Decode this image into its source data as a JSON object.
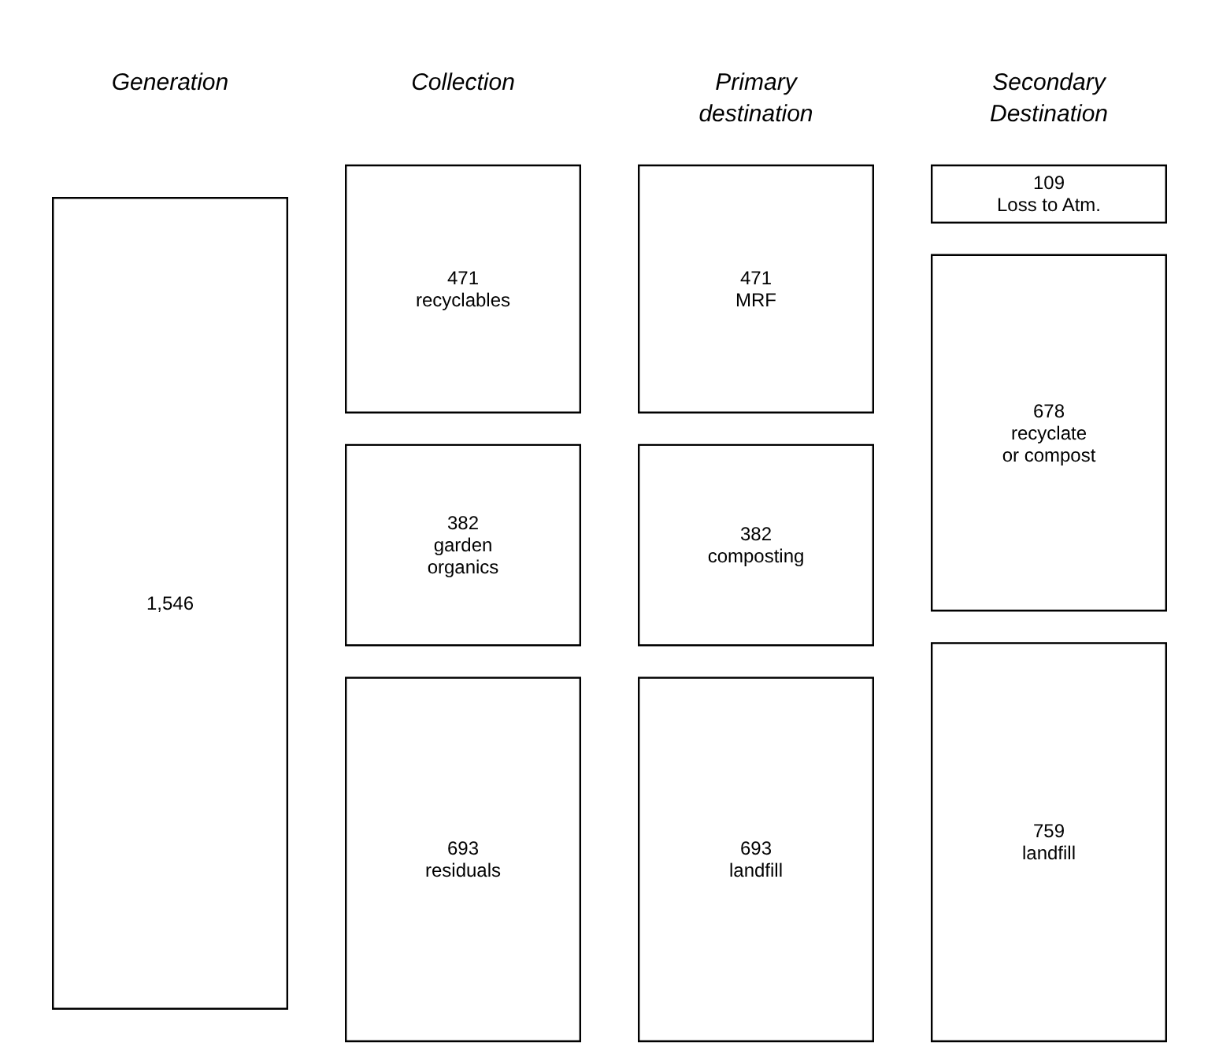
{
  "chart_data": {
    "type": "other",
    "categories": [
      "Generation",
      "Collection",
      "Primary destination",
      "Secondary Destination"
    ],
    "series": [
      {
        "values": [
          1546,
          471,
          471,
          109
        ],
        "value_labels": [
          "1,546",
          "471\nrecyclables",
          "471\nMRF",
          "109\nLoss to Atm."
        ]
      },
      {
        "values": [
          null,
          382,
          382,
          678
        ],
        "value_labels": [
          null,
          "382\ngarden\norganics",
          "382\ncomposting",
          "678\nrecyclate\nor compost"
        ]
      },
      {
        "values": [
          null,
          693,
          693,
          759
        ],
        "value_labels": [
          null,
          "693\nresiduals",
          "693\nlandfill",
          "759\nlandfill"
        ]
      }
    ]
  }
}
